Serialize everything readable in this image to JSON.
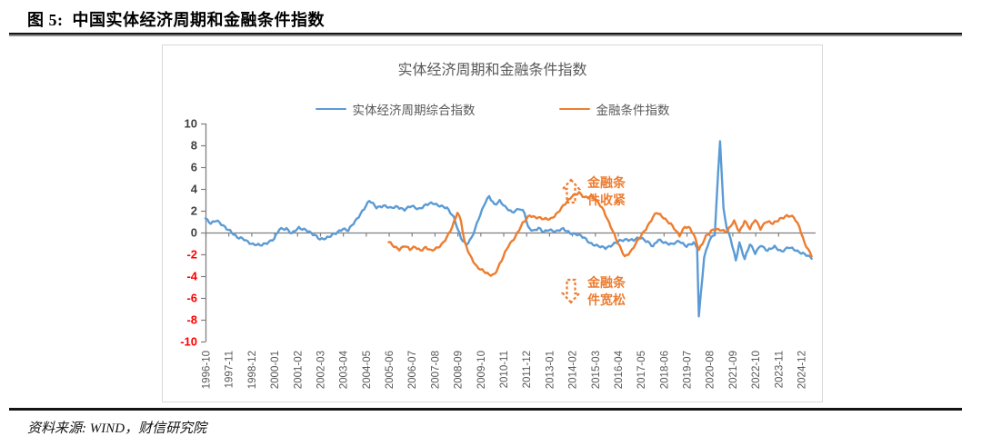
{
  "figure": {
    "label": "图 5:",
    "title": "中国实体经济周期和金融条件指数"
  },
  "source": {
    "text": "资料来源: WIND，财信研究院"
  },
  "chart_data": {
    "type": "line",
    "title": "实体经济周期和金融条件指数",
    "x_start": "1996-10",
    "x_end": "2025-06",
    "x_tick_labels": [
      "1996-10",
      "1997-11",
      "1998-12",
      "2000-01",
      "2001-02",
      "2002-03",
      "2003-04",
      "2004-05",
      "2005-06",
      "2006-07",
      "2007-08",
      "2008-09",
      "2009-10",
      "2010-11",
      "2011-12",
      "2013-01",
      "2014-02",
      "2015-03",
      "2016-04",
      "2017-05",
      "2018-06",
      "2019-07",
      "2020-08",
      "2021-09",
      "2022-10",
      "2023-11",
      "2024-12"
    ],
    "x_tick_step_months": 13,
    "ylim": [
      -10,
      10
    ],
    "y_ticks": [
      10,
      8,
      6,
      4,
      2,
      0,
      -2,
      -4,
      -6,
      -8,
      -10
    ],
    "grid": false,
    "legend_position": "top",
    "axis_color": "#808080",
    "tick_label_color": "#595959",
    "y_label_color": "#404040",
    "negative_tick_color": "#FF0000",
    "series": [
      {
        "name": "实体经济周期综合指数",
        "color": "#5B9BD5",
        "keypoints": [
          [
            "1996-10",
            1.3
          ],
          [
            "1997-01",
            0.9
          ],
          [
            "1997-04",
            1.1
          ],
          [
            "1997-08",
            0.6
          ],
          [
            "1997-12",
            0.2
          ],
          [
            "1998-04",
            -0.5
          ],
          [
            "1998-08",
            -0.6
          ],
          [
            "1999-01",
            -1.1
          ],
          [
            "1999-05",
            -1.2
          ],
          [
            "1999-09",
            -0.9
          ],
          [
            "2000-01",
            -0.6
          ],
          [
            "2000-04",
            0.3
          ],
          [
            "2000-08",
            0.4
          ],
          [
            "2000-11",
            -0.1
          ],
          [
            "2001-03",
            0.4
          ],
          [
            "2001-07",
            0.3
          ],
          [
            "2001-11",
            -0.2
          ],
          [
            "2002-03",
            -0.6
          ],
          [
            "2002-08",
            -0.4
          ],
          [
            "2002-12",
            -0.1
          ],
          [
            "2003-04",
            0.4
          ],
          [
            "2003-07",
            0.2
          ],
          [
            "2003-11",
            1.0
          ],
          [
            "2004-03",
            2.0
          ],
          [
            "2004-07",
            2.9
          ],
          [
            "2004-11",
            2.3
          ],
          [
            "2005-03",
            2.5
          ],
          [
            "2005-07",
            2.2
          ],
          [
            "2005-11",
            2.4
          ],
          [
            "2006-03",
            2.1
          ],
          [
            "2006-07",
            2.4
          ],
          [
            "2006-11",
            2.2
          ],
          [
            "2007-03",
            2.5
          ],
          [
            "2007-07",
            2.7
          ],
          [
            "2007-11",
            2.5
          ],
          [
            "2008-03",
            2.2
          ],
          [
            "2008-07",
            1.4
          ],
          [
            "2008-11",
            -0.5
          ],
          [
            "2009-02",
            -1.2
          ],
          [
            "2009-05",
            -0.5
          ],
          [
            "2009-09",
            1.3
          ],
          [
            "2010-01",
            2.8
          ],
          [
            "2010-03",
            3.3
          ],
          [
            "2010-06",
            2.6
          ],
          [
            "2010-09",
            2.9
          ],
          [
            "2010-12",
            2.3
          ],
          [
            "2011-04",
            1.9
          ],
          [
            "2011-08",
            2.2
          ],
          [
            "2011-11",
            1.8
          ],
          [
            "2012-01",
            0.5
          ],
          [
            "2012-04",
            0.2
          ],
          [
            "2012-07",
            0.4
          ],
          [
            "2012-10",
            0.0
          ],
          [
            "2013-01",
            0.3
          ],
          [
            "2013-05",
            0.1
          ],
          [
            "2013-09",
            0.3
          ],
          [
            "2014-01",
            0.0
          ],
          [
            "2014-05",
            -0.2
          ],
          [
            "2014-09",
            -0.5
          ],
          [
            "2015-01",
            -1.0
          ],
          [
            "2015-05",
            -1.3
          ],
          [
            "2015-09",
            -1.4
          ],
          [
            "2016-01",
            -1.1
          ],
          [
            "2016-05",
            -0.8
          ],
          [
            "2016-09",
            -0.6
          ],
          [
            "2017-01",
            -0.7
          ],
          [
            "2017-05",
            -0.5
          ],
          [
            "2017-09",
            -0.8
          ],
          [
            "2017-12",
            -1.3
          ],
          [
            "2018-03",
            -0.7
          ],
          [
            "2018-07",
            -0.9
          ],
          [
            "2018-11",
            -1.1
          ],
          [
            "2019-03",
            -0.8
          ],
          [
            "2019-07",
            -1.2
          ],
          [
            "2019-11",
            -1.0
          ],
          [
            "2020-01",
            -1.4
          ],
          [
            "2020-02",
            -7.7
          ],
          [
            "2020-05",
            -2.2
          ],
          [
            "2020-08",
            -0.7
          ],
          [
            "2020-11",
            -0.2
          ],
          [
            "2021-02",
            8.5
          ],
          [
            "2021-04",
            2.2
          ],
          [
            "2021-06",
            0.3
          ],
          [
            "2021-08",
            -0.6
          ],
          [
            "2021-11",
            -2.6
          ],
          [
            "2022-01",
            -0.9
          ],
          [
            "2022-04",
            -2.4
          ],
          [
            "2022-07",
            -1.1
          ],
          [
            "2022-10",
            -1.9
          ],
          [
            "2023-01",
            -1.1
          ],
          [
            "2023-05",
            -1.7
          ],
          [
            "2023-09",
            -1.3
          ],
          [
            "2024-01",
            -1.7
          ],
          [
            "2024-05",
            -1.4
          ],
          [
            "2024-09",
            -1.6
          ],
          [
            "2025-01",
            -1.9
          ],
          [
            "2025-06",
            -2.4
          ]
        ]
      },
      {
        "name": "金融条件指数",
        "color": "#ED7D31",
        "keypoints": [
          [
            "2005-06",
            -0.9
          ],
          [
            "2005-09",
            -1.3
          ],
          [
            "2005-12",
            -1.5
          ],
          [
            "2006-03",
            -1.2
          ],
          [
            "2006-06",
            -1.6
          ],
          [
            "2006-09",
            -1.3
          ],
          [
            "2006-12",
            -1.6
          ],
          [
            "2007-03",
            -1.4
          ],
          [
            "2007-06",
            -1.7
          ],
          [
            "2007-09",
            -1.4
          ],
          [
            "2007-12",
            -1.1
          ],
          [
            "2008-03",
            -0.5
          ],
          [
            "2008-06",
            0.5
          ],
          [
            "2008-09",
            1.9
          ],
          [
            "2008-11",
            1.1
          ],
          [
            "2009-01",
            -0.9
          ],
          [
            "2009-04",
            -2.1
          ],
          [
            "2009-08",
            -3.1
          ],
          [
            "2009-12",
            -3.6
          ],
          [
            "2010-03",
            -3.9
          ],
          [
            "2010-06",
            -3.8
          ],
          [
            "2010-10",
            -2.6
          ],
          [
            "2011-02",
            -1.2
          ],
          [
            "2011-06",
            -0.3
          ],
          [
            "2011-10",
            0.8
          ],
          [
            "2012-02",
            1.6
          ],
          [
            "2012-06",
            1.4
          ],
          [
            "2012-10",
            1.2
          ],
          [
            "2013-02",
            1.3
          ],
          [
            "2013-06",
            1.8
          ],
          [
            "2013-10",
            2.6
          ],
          [
            "2014-02",
            3.4
          ],
          [
            "2014-06",
            3.6
          ],
          [
            "2014-09",
            3.2
          ],
          [
            "2015-01",
            3.4
          ],
          [
            "2015-04",
            2.9
          ],
          [
            "2015-08",
            2.0
          ],
          [
            "2015-12",
            0.6
          ],
          [
            "2016-04",
            -1.0
          ],
          [
            "2016-08",
            -2.2
          ],
          [
            "2016-12",
            -1.6
          ],
          [
            "2017-04",
            -0.6
          ],
          [
            "2017-08",
            0.4
          ],
          [
            "2017-12",
            1.4
          ],
          [
            "2018-02",
            1.8
          ],
          [
            "2018-06",
            1.4
          ],
          [
            "2018-10",
            0.8
          ],
          [
            "2019-01",
            0.1
          ],
          [
            "2019-03",
            -0.3
          ],
          [
            "2019-06",
            0.6
          ],
          [
            "2019-09",
            0.4
          ],
          [
            "2019-12",
            -0.6
          ],
          [
            "2020-02",
            -1.6
          ],
          [
            "2020-06",
            -0.3
          ],
          [
            "2020-10",
            0.2
          ],
          [
            "2021-02",
            0.3
          ],
          [
            "2021-06",
            0.1
          ],
          [
            "2021-10",
            1.0
          ],
          [
            "2022-01",
            0.1
          ],
          [
            "2022-04",
            1.1
          ],
          [
            "2022-07",
            0.3
          ],
          [
            "2022-10",
            1.2
          ],
          [
            "2023-01",
            0.4
          ],
          [
            "2023-04",
            1.0
          ],
          [
            "2023-08",
            0.8
          ],
          [
            "2023-12",
            1.3
          ],
          [
            "2024-04",
            1.5
          ],
          [
            "2024-08",
            1.4
          ],
          [
            "2024-11",
            0.6
          ],
          [
            "2025-02",
            -1.0
          ],
          [
            "2025-06",
            -2.2
          ]
        ]
      }
    ],
    "annotations": [
      {
        "arrow": "up",
        "color": "#ED7D31",
        "text_lines": [
          "金融条",
          "件收紧"
        ]
      },
      {
        "arrow": "down",
        "color": "#ED7D31",
        "text_lines": [
          "金融条",
          "件宽松"
        ]
      }
    ]
  }
}
